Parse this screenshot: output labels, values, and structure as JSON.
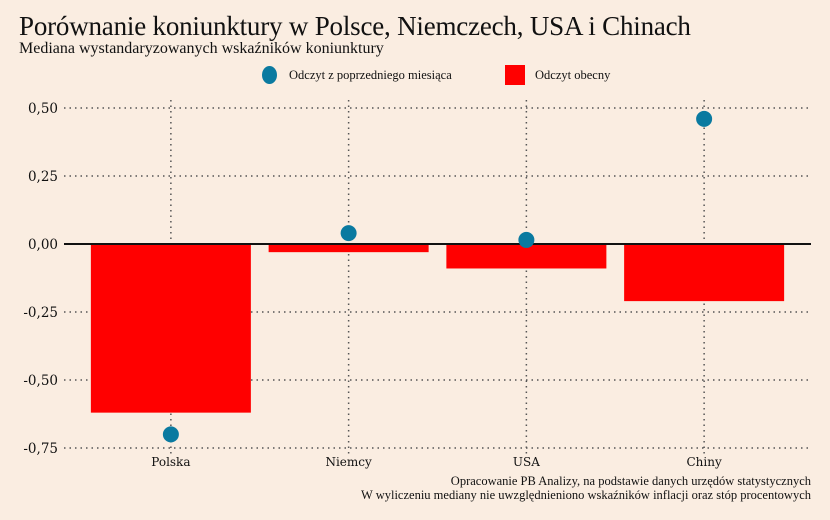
{
  "chart_data": {
    "type": "bar",
    "title": "Porównanie koniunktury w Polsce, Niemczech, USA i Chinach",
    "subtitle": "Mediana wystandaryzowanych wskaźników koniunktury",
    "categories": [
      "Polska",
      "Niemcy",
      "USA",
      "Chiny"
    ],
    "series": [
      {
        "name": "Odczyt obecny",
        "kind": "bar",
        "color": "#ff0000",
        "values": [
          -0.62,
          -0.03,
          -0.09,
          -0.21
        ]
      },
      {
        "name": "Odczyt z poprzedniego miesiąca",
        "kind": "dot",
        "color": "#0a7aa0",
        "values": [
          -0.7,
          0.04,
          0.015,
          0.46
        ]
      }
    ],
    "legend": [
      {
        "label": "Odczyt z poprzedniego miesiąca",
        "marker": "dot",
        "color": "#0a7aa0"
      },
      {
        "label": "Odczyt obecny",
        "marker": "square",
        "color": "#ff0000"
      }
    ],
    "legend_position": "top-center",
    "yticks": [
      0.5,
      0.25,
      0.0,
      -0.25,
      -0.5,
      -0.75
    ],
    "ytick_labels": [
      "0,50",
      "0,25",
      "0,00",
      "-0,25",
      "-0,50",
      "-0,75"
    ],
    "ylim": [
      -0.75,
      0.5
    ],
    "xlabel": "",
    "ylabel": "",
    "grid": true,
    "notes": [
      "Opracowanie PB Analizy, na podstawie danych urzędów statystycznych",
      "W wyliczeniu mediany nie uwzględnieniono wskaźników inflacji oraz stóp procentowych"
    ]
  }
}
